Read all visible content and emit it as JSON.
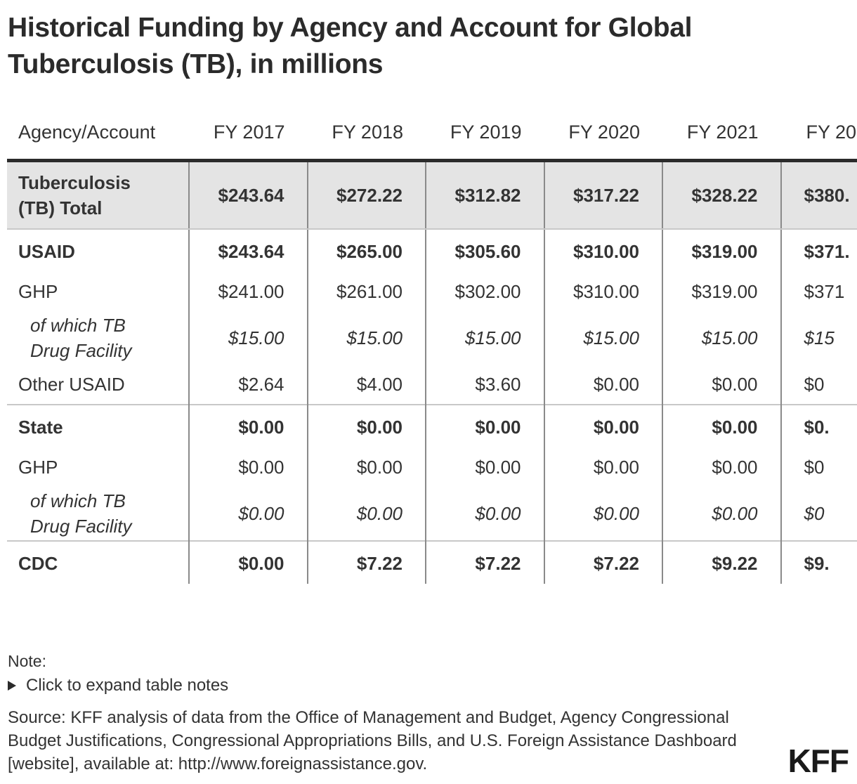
{
  "title": "Historical Funding by Agency and Account for Global Tuberculosis (TB), in millions",
  "table": {
    "headers": [
      "Agency/Account",
      "FY 2017",
      "FY 2018",
      "FY 2019",
      "FY 2020",
      "FY 2021",
      "FY 20"
    ],
    "rows": [
      {
        "label": "Tuberculosis (TB) Total",
        "values": [
          "$243.64",
          "$272.22",
          "$312.82",
          "$317.22",
          "$328.22",
          "$380."
        ]
      },
      {
        "label": "USAID",
        "values": [
          "$243.64",
          "$265.00",
          "$305.60",
          "$310.00",
          "$319.00",
          "$371."
        ]
      },
      {
        "label": "GHP",
        "values": [
          "$241.00",
          "$261.00",
          "$302.00",
          "$310.00",
          "$319.00",
          "$371"
        ]
      },
      {
        "label": "of which TB Drug Facility",
        "values": [
          "$15.00",
          "$15.00",
          "$15.00",
          "$15.00",
          "$15.00",
          "$15"
        ]
      },
      {
        "label": "Other USAID",
        "values": [
          "$2.64",
          "$4.00",
          "$3.60",
          "$0.00",
          "$0.00",
          "$0"
        ]
      },
      {
        "label": "State",
        "values": [
          "$0.00",
          "$0.00",
          "$0.00",
          "$0.00",
          "$0.00",
          "$0."
        ]
      },
      {
        "label": "GHP",
        "values": [
          "$0.00",
          "$0.00",
          "$0.00",
          "$0.00",
          "$0.00",
          "$0"
        ]
      },
      {
        "label": "of which TB Drug Facility",
        "values": [
          "$0.00",
          "$0.00",
          "$0.00",
          "$0.00",
          "$0.00",
          "$0"
        ]
      },
      {
        "label": "CDC",
        "values": [
          "$0.00",
          "$7.22",
          "$7.22",
          "$7.22",
          "$9.22",
          "$9."
        ]
      }
    ]
  },
  "note_label": "Note:",
  "expand_label": "Click to expand table notes",
  "source": "Source: KFF analysis of data from the Office of Management and Budget, Agency Congressional Budget Justifications, Congressional Appropriations Bills, and U.S. Foreign Assistance Dashboard [website], available at: http://www.foreignassistance.gov.",
  "logo": "KFF"
}
